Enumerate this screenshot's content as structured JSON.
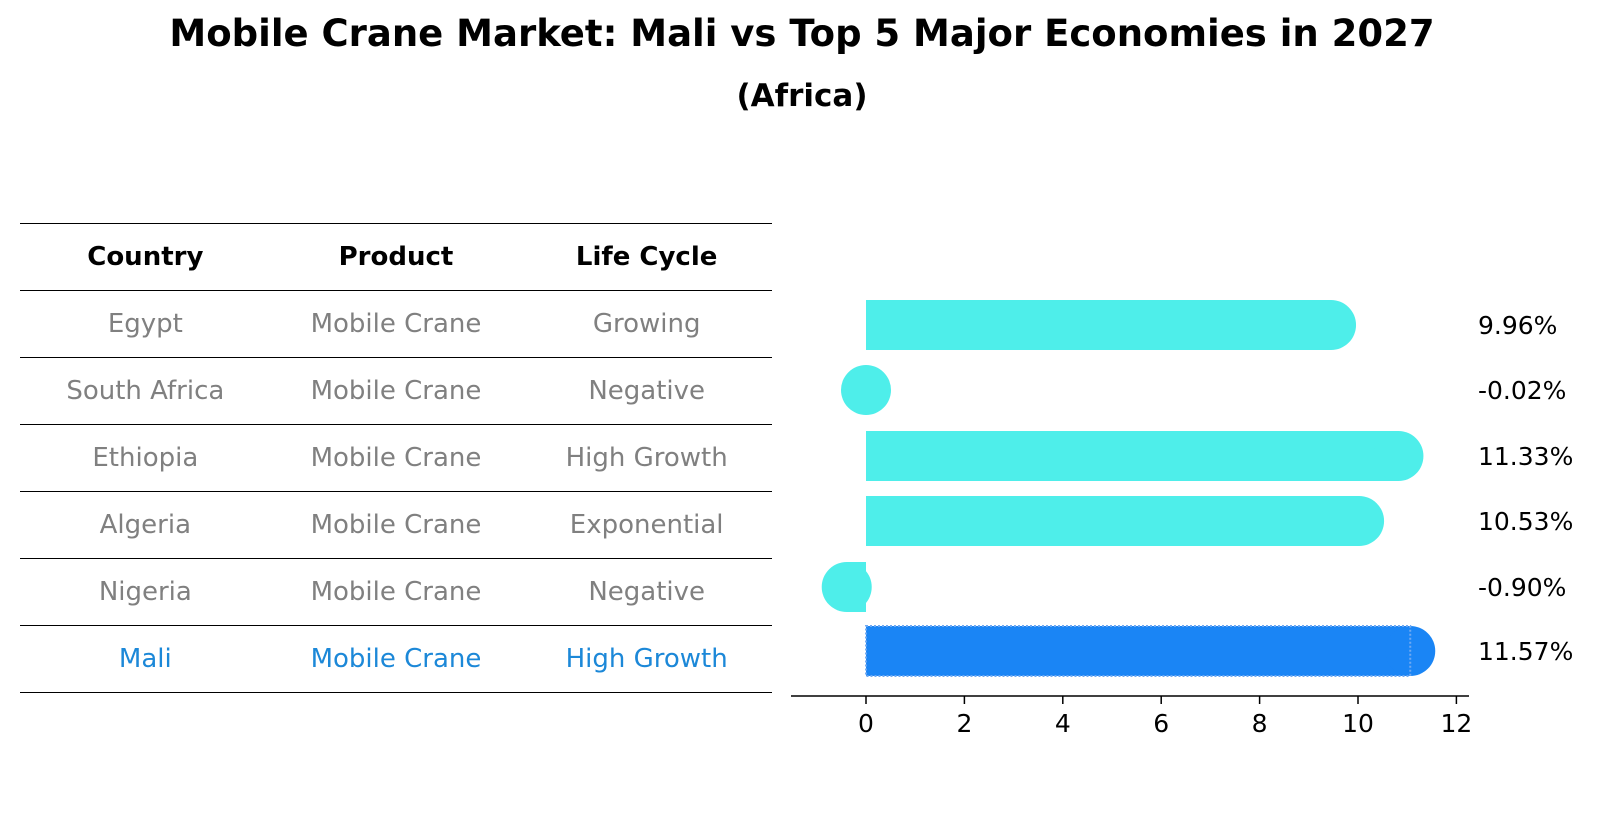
{
  "title": "Mobile Crane Market: Mali vs Top 5 Major Economies in 2027",
  "subtitle": "(Africa)",
  "table": {
    "headers": [
      "Country",
      "Product",
      "Life Cycle"
    ],
    "rows": [
      [
        "Egypt",
        "Mobile Crane",
        "Growing"
      ],
      [
        "South Africa",
        "Mobile Crane",
        "Negative"
      ],
      [
        "Ethiopia",
        "Mobile Crane",
        "High Growth"
      ],
      [
        "Algeria",
        "Mobile Crane",
        "Exponential"
      ],
      [
        "Nigeria",
        "Mobile Crane",
        "Negative"
      ],
      [
        "Mali",
        "Mobile Crane",
        "High Growth"
      ]
    ],
    "highlight_row": 5
  },
  "colors": {
    "bar": "#4eeeea",
    "highlight_bar": "#1a85f5",
    "highlight_text": "#1c88d8",
    "muted_text": "#808080"
  },
  "chart_data": {
    "type": "bar",
    "orientation": "horizontal",
    "categories": [
      "Egypt",
      "South Africa",
      "Ethiopia",
      "Algeria",
      "Nigeria",
      "Mali"
    ],
    "values": [
      9.96,
      -0.02,
      11.33,
      10.53,
      -0.9,
      11.57
    ],
    "labels": [
      "9.96%",
      "-0.02%",
      "11.33%",
      "10.53%",
      "-0.90%",
      "11.57%"
    ],
    "highlight": "Mali",
    "xticks": [
      "0",
      "2",
      "4",
      "6",
      "8",
      "10",
      "12"
    ],
    "xlim": [
      -1.5,
      12.2
    ],
    "title": "Mobile Crane Market: Mali vs Top 5 Major Economies in 2027",
    "xlabel": "",
    "ylabel": ""
  }
}
